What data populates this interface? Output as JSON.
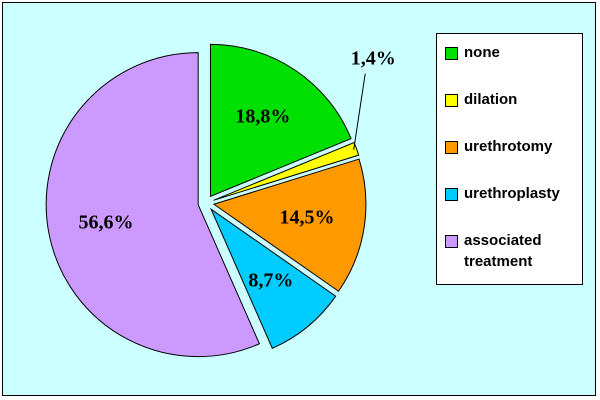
{
  "chart_data": {
    "type": "pie",
    "categories": [
      "none",
      "dilation",
      "urethrotomy",
      "urethroplasty",
      "associated treatment"
    ],
    "values": [
      18.8,
      1.4,
      14.5,
      8.7,
      56.6
    ],
    "value_labels": [
      "18,8%",
      "1,4%",
      "14,5%",
      "8,7%",
      "56,6%"
    ],
    "colors": [
      "#00e000",
      "#ffff00",
      "#ff9900",
      "#00ccff",
      "#cc99ff"
    ],
    "legend": "right"
  }
}
